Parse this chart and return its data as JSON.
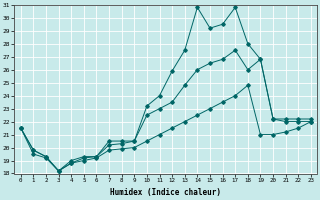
{
  "xlabel": "Humidex (Indice chaleur)",
  "bg_color": "#c8eaea",
  "grid_color": "#ffffff",
  "line_color": "#006666",
  "x_values": [
    0,
    1,
    2,
    3,
    4,
    5,
    6,
    7,
    8,
    9,
    10,
    11,
    12,
    13,
    14,
    15,
    16,
    17,
    18,
    19,
    20,
    21,
    22,
    23
  ],
  "line1": [
    21.5,
    19.8,
    19.3,
    18.2,
    19.0,
    19.3,
    19.3,
    20.5,
    20.5,
    20.5,
    23.2,
    24.0,
    25.9,
    27.5,
    30.8,
    29.2,
    29.5,
    30.8,
    28.0,
    26.8,
    22.2,
    22.2,
    22.2,
    22.2
  ],
  "line2": [
    21.5,
    19.8,
    19.3,
    18.2,
    18.8,
    19.2,
    19.3,
    20.2,
    20.3,
    20.5,
    22.5,
    23.0,
    23.5,
    24.8,
    26.0,
    26.5,
    26.8,
    27.5,
    26.0,
    26.8,
    22.2,
    22.0,
    22.0,
    22.0
  ],
  "line3": [
    21.5,
    19.5,
    19.2,
    18.2,
    18.8,
    19.0,
    19.2,
    19.8,
    19.9,
    20.0,
    20.5,
    21.0,
    21.5,
    22.0,
    22.5,
    23.0,
    23.5,
    24.0,
    24.8,
    21.0,
    21.0,
    21.2,
    21.5,
    22.0
  ],
  "ylim": [
    18,
    31
  ],
  "xlim": [
    -0.5,
    23.5
  ],
  "yticks": [
    18,
    19,
    20,
    21,
    22,
    23,
    24,
    25,
    26,
    27,
    28,
    29,
    30,
    31
  ],
  "xticks": [
    0,
    1,
    2,
    3,
    4,
    5,
    6,
    7,
    8,
    9,
    10,
    11,
    12,
    13,
    14,
    15,
    16,
    17,
    18,
    19,
    20,
    21,
    22,
    23
  ]
}
